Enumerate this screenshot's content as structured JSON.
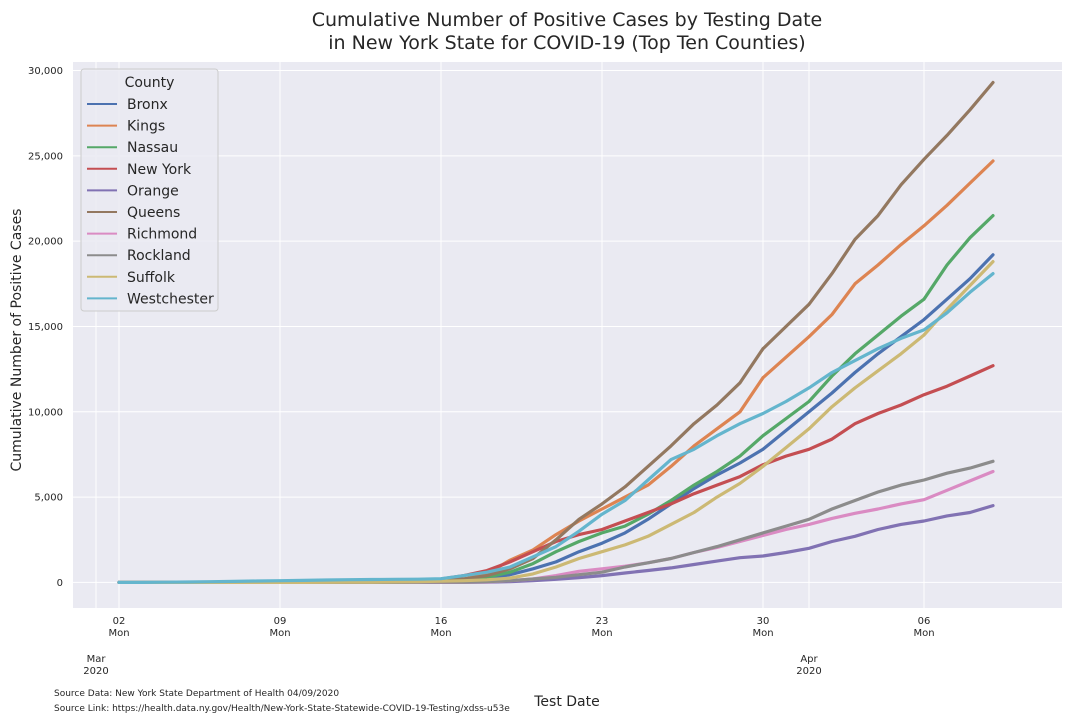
{
  "chart_data": {
    "type": "line",
    "title_line1": "Cumulative Number of Positive Cases by Testing Date",
    "title_line2": "in New York State for COVID-19 (Top Ten Counties)",
    "xlabel": "Test Date",
    "ylabel": "Cumulative Number of Positive Cases",
    "ylim": [
      -1500,
      30500
    ],
    "xlim": [
      "2020-02-29",
      "2020-04-12"
    ],
    "grid": true,
    "y_ticks": [
      {
        "value": 0,
        "label": "0"
      },
      {
        "value": 5000,
        "label": "5,000"
      },
      {
        "value": 10000,
        "label": "10,000"
      },
      {
        "value": 15000,
        "label": "15,000"
      },
      {
        "value": 20000,
        "label": "20,000"
      },
      {
        "value": 25000,
        "label": "25,000"
      },
      {
        "value": 30000,
        "label": "30,000"
      }
    ],
    "x_ticks": [
      {
        "date": "2020-03-02",
        "day": "02",
        "weekday": "Mon"
      },
      {
        "date": "2020-03-09",
        "day": "09",
        "weekday": "Mon"
      },
      {
        "date": "2020-03-16",
        "day": "16",
        "weekday": "Mon"
      },
      {
        "date": "2020-03-23",
        "day": "23",
        "weekday": "Mon"
      },
      {
        "date": "2020-03-30",
        "day": "30",
        "weekday": "Mon"
      },
      {
        "date": "2020-04-06",
        "day": "06",
        "weekday": "Mon"
      }
    ],
    "month_ticks": [
      {
        "date": "2020-03-01",
        "month": "Mar",
        "year": "2020"
      },
      {
        "date": "2020-04-01",
        "month": "Apr",
        "year": "2020"
      }
    ],
    "legend": {
      "title": "County",
      "position": "top-left"
    },
    "x": [
      "2020-03-02",
      "2020-03-03",
      "2020-03-04",
      "2020-03-05",
      "2020-03-06",
      "2020-03-07",
      "2020-03-08",
      "2020-03-09",
      "2020-03-10",
      "2020-03-11",
      "2020-03-12",
      "2020-03-13",
      "2020-03-14",
      "2020-03-15",
      "2020-03-16",
      "2020-03-17",
      "2020-03-18",
      "2020-03-19",
      "2020-03-20",
      "2020-03-21",
      "2020-03-22",
      "2020-03-23",
      "2020-03-24",
      "2020-03-25",
      "2020-03-26",
      "2020-03-27",
      "2020-03-28",
      "2020-03-29",
      "2020-03-30",
      "2020-03-31",
      "2020-04-01",
      "2020-04-02",
      "2020-04-03",
      "2020-04-04",
      "2020-04-05",
      "2020-04-06",
      "2020-04-07",
      "2020-04-08",
      "2020-04-09"
    ],
    "series": [
      {
        "name": "Bronx",
        "color": "#4c72b0",
        "values": [
          0,
          0,
          0,
          0,
          0,
          0,
          0,
          0,
          0,
          0,
          0,
          2,
          5,
          10,
          30,
          80,
          200,
          450,
          800,
          1200,
          1800,
          2300,
          2900,
          3700,
          4600,
          5500,
          6300,
          7000,
          7800,
          8900,
          10000,
          11100,
          12300,
          13400,
          14400,
          15400,
          16600,
          17800,
          19200
        ]
      },
      {
        "name": "Kings",
        "color": "#dd8452",
        "values": [
          0,
          0,
          0,
          0,
          0,
          0,
          0,
          0,
          0,
          0,
          5,
          10,
          20,
          40,
          80,
          200,
          500,
          1300,
          1900,
          2800,
          3600,
          4300,
          5000,
          5700,
          6800,
          8000,
          9000,
          10000,
          12000,
          13200,
          14400,
          15700,
          17500,
          18600,
          19800,
          20900,
          22100,
          23400,
          24700
        ]
      },
      {
        "name": "Nassau",
        "color": "#55a868",
        "values": [
          0,
          0,
          0,
          0,
          0,
          5,
          10,
          20,
          30,
          40,
          50,
          60,
          70,
          90,
          120,
          200,
          300,
          600,
          1100,
          1800,
          2400,
          2900,
          3300,
          4000,
          4800,
          5700,
          6500,
          7400,
          8600,
          9600,
          10600,
          12100,
          13400,
          14500,
          15600,
          16600,
          18600,
          20200,
          21500
        ]
      },
      {
        "name": "New York",
        "color": "#c44e52",
        "values": [
          0,
          0,
          0,
          0,
          0,
          0,
          0,
          5,
          10,
          20,
          30,
          50,
          80,
          120,
          200,
          400,
          700,
          1200,
          1800,
          2400,
          2800,
          3100,
          3600,
          4100,
          4600,
          5200,
          5700,
          6200,
          6900,
          7400,
          7800,
          8400,
          9300,
          9900,
          10400,
          11000,
          11500,
          12100,
          12700
        ]
      },
      {
        "name": "Orange",
        "color": "#8172b3",
        "values": [
          0,
          0,
          0,
          0,
          0,
          0,
          0,
          0,
          0,
          0,
          0,
          0,
          0,
          1,
          2,
          5,
          10,
          50,
          100,
          180,
          280,
          400,
          550,
          700,
          850,
          1050,
          1250,
          1450,
          1550,
          1750,
          2000,
          2400,
          2700,
          3100,
          3400,
          3600,
          3900,
          4100,
          4500
        ]
      },
      {
        "name": "Queens",
        "color": "#937860",
        "values": [
          0,
          0,
          0,
          0,
          0,
          0,
          0,
          0,
          0,
          5,
          10,
          20,
          40,
          80,
          120,
          200,
          400,
          800,
          1400,
          2500,
          3700,
          4600,
          5600,
          6800,
          8000,
          9300,
          10400,
          11700,
          13700,
          15000,
          16300,
          18100,
          20100,
          21500,
          23300,
          24800,
          26200,
          27700,
          29300
        ]
      },
      {
        "name": "Richmond",
        "color": "#da8bc3",
        "values": [
          0,
          0,
          0,
          0,
          0,
          0,
          0,
          0,
          0,
          0,
          0,
          0,
          0,
          2,
          5,
          10,
          30,
          100,
          200,
          400,
          650,
          800,
          950,
          1150,
          1400,
          1750,
          2050,
          2400,
          2750,
          3100,
          3400,
          3750,
          4050,
          4300,
          4600,
          4850,
          5400,
          5950,
          6500
        ]
      },
      {
        "name": "Rockland",
        "color": "#8c8c8c",
        "values": [
          0,
          0,
          0,
          0,
          0,
          0,
          0,
          0,
          0,
          0,
          0,
          1,
          3,
          5,
          10,
          20,
          50,
          100,
          200,
          300,
          450,
          600,
          900,
          1150,
          1400,
          1750,
          2100,
          2500,
          2900,
          3300,
          3700,
          4300,
          4800,
          5300,
          5700,
          6000,
          6400,
          6700,
          7100
        ]
      },
      {
        "name": "Suffolk",
        "color": "#ccb974",
        "values": [
          0,
          0,
          0,
          0,
          0,
          0,
          0,
          0,
          2,
          5,
          10,
          20,
          30,
          50,
          70,
          100,
          150,
          250,
          500,
          900,
          1400,
          1800,
          2200,
          2700,
          3400,
          4100,
          5000,
          5800,
          6800,
          7900,
          9000,
          10300,
          11400,
          12400,
          13400,
          14500,
          16000,
          17400,
          18800
        ]
      },
      {
        "name": "Westchester",
        "color": "#64b5cd",
        "values": [
          0,
          1,
          10,
          25,
          40,
          60,
          80,
          100,
          120,
          140,
          160,
          170,
          180,
          190,
          220,
          400,
          600,
          900,
          1500,
          2100,
          3000,
          4000,
          4800,
          6000,
          7200,
          7800,
          8600,
          9300,
          9900,
          10600,
          11400,
          12300,
          13000,
          13700,
          14300,
          14800,
          15800,
          17000,
          18100
        ]
      }
    ]
  },
  "source": {
    "data": "Source Data: New York State Department of Health 04/09/2020",
    "link": "Source Link: https://health.data.ny.gov/Health/New-York-State-Statewide-COVID-19-Testing/xdss-u53e"
  },
  "style": {
    "plot_bg": "#eaeaf2",
    "grid": "#ffffff",
    "text": "#262626"
  }
}
